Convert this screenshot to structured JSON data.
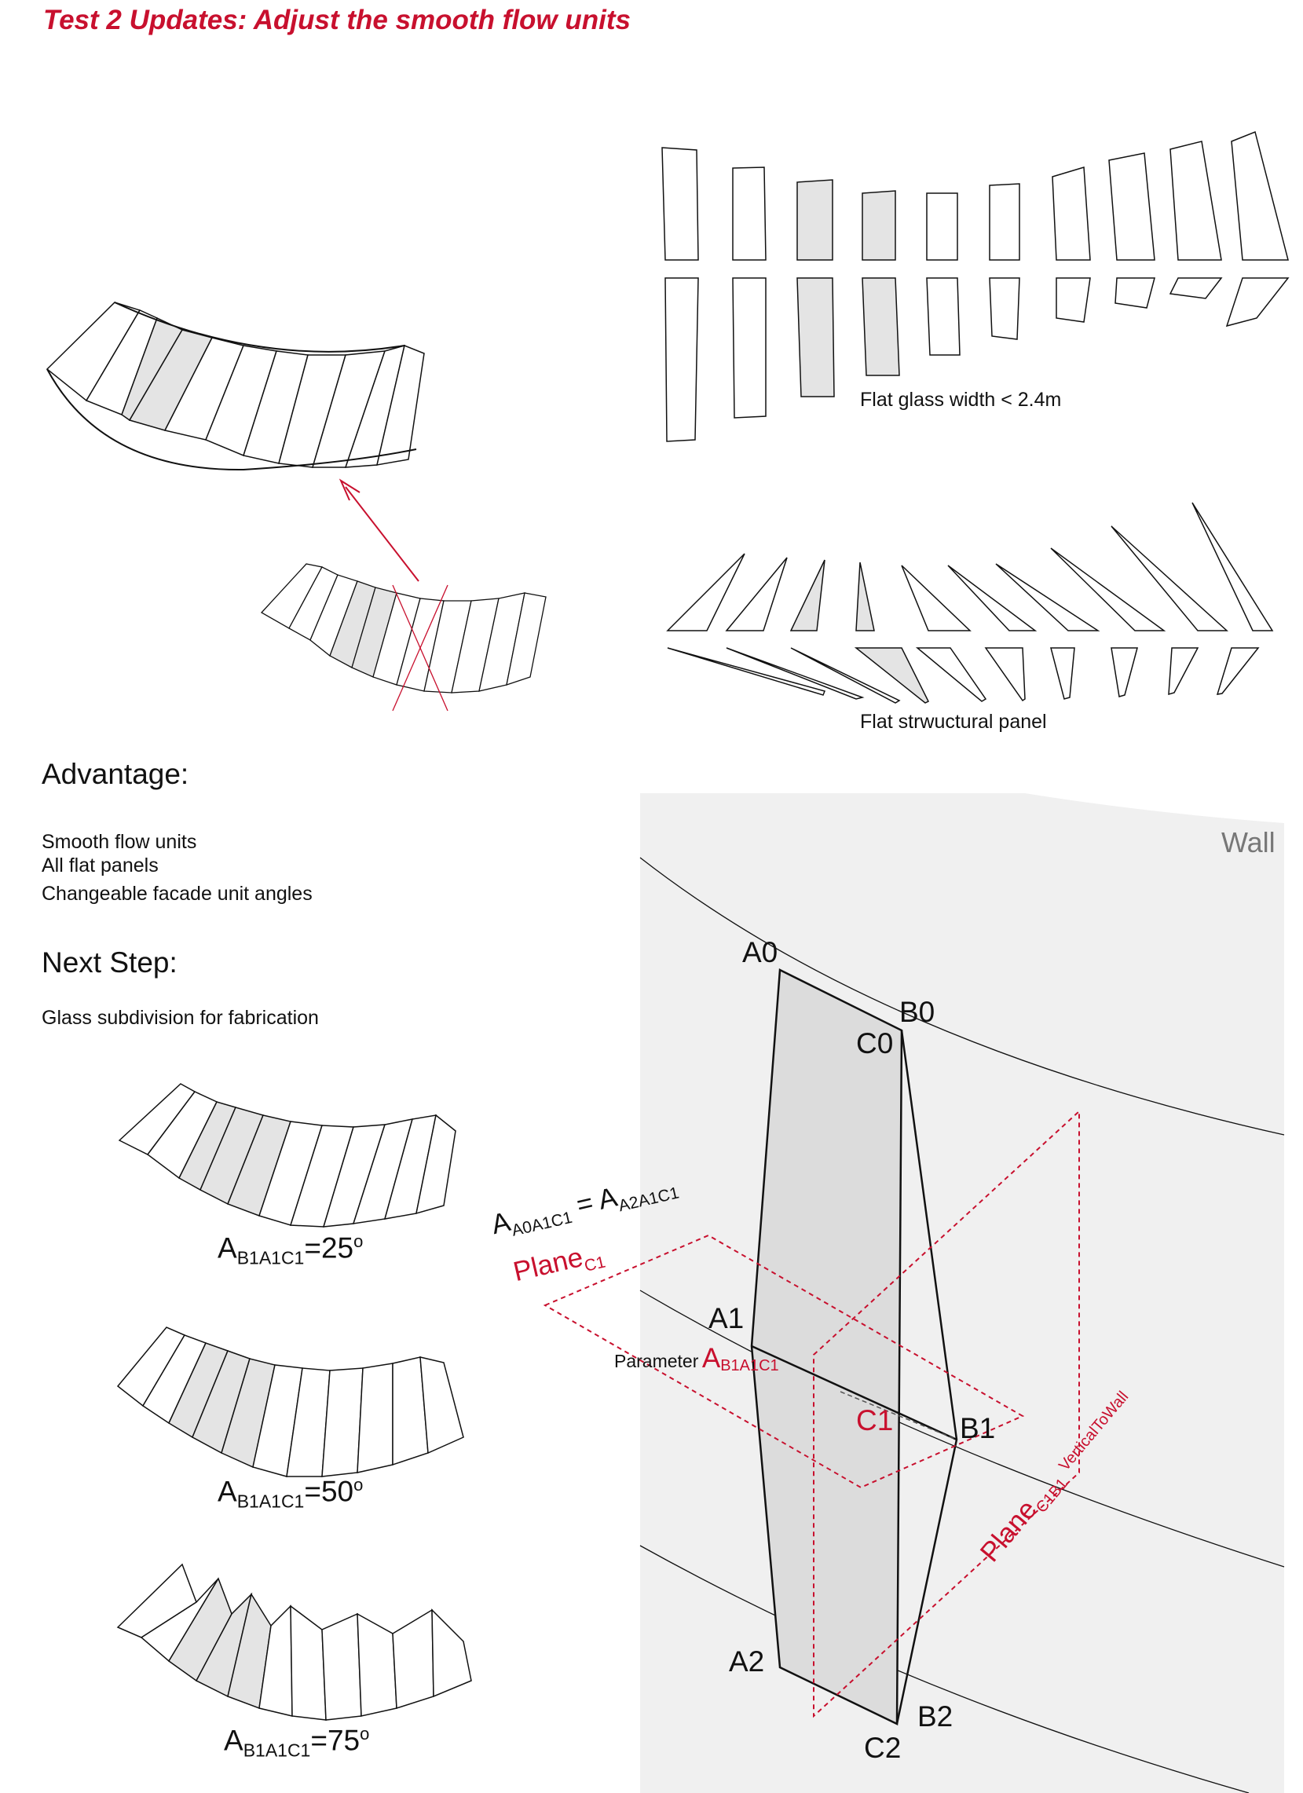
{
  "title": "Test 2 Updates: Adjust the smooth flow units",
  "captions": {
    "flat_glass": "Flat glass width < 2.4m",
    "flat_panel": "Flat strwuctural panel"
  },
  "advantage": {
    "heading": "Advantage:",
    "items": [
      "Smooth flow units",
      "All flat panels",
      "Changeable facade unit angles"
    ]
  },
  "next_step": {
    "heading": "Next Step:",
    "item": "Glass subdivision for fabrication"
  },
  "angle_variants": [
    {
      "base": "A",
      "sub": "B1A1C1",
      "value": "=25",
      "unit": "o"
    },
    {
      "base": "A",
      "sub": "B1A1C1",
      "value": "=50",
      "unit": "o"
    },
    {
      "base": "A",
      "sub": "B1A1C1",
      "value": "=75",
      "unit": "o"
    }
  ],
  "diagram": {
    "wall_label": "Wall",
    "points": {
      "A0": "A0",
      "B0": "B0",
      "C0": "C0",
      "A1": "A1",
      "B1": "B1",
      "C1": "C1",
      "A2": "A2",
      "B2": "B2",
      "C2": "C2"
    },
    "equation": {
      "lhs_base": "A",
      "lhs_sub": "A0A1C1",
      "eq": " = ",
      "rhs_base": "A",
      "rhs_sub": "A2A1C1"
    },
    "plane_c1": {
      "base": "Plane",
      "sub": "C1"
    },
    "parameter": {
      "label": "Parameter",
      "base": "A",
      "sub": "B1A1C1"
    },
    "plane_c1b1": {
      "base": "Plane",
      "sub": "C1B1",
      "sub2": "VerticalToWall"
    }
  },
  "colors": {
    "accent": "#c8102e",
    "panel_fill": "#e4e4e4",
    "wall_bg": "#f0f0f0",
    "line": "#111111"
  }
}
